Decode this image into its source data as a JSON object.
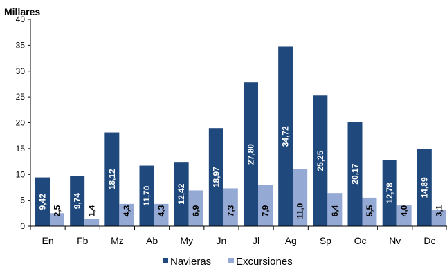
{
  "chart_data": {
    "type": "bar",
    "ylabel": "Millares",
    "ylim": [
      0,
      40
    ],
    "yticks": [
      0,
      5,
      10,
      15,
      20,
      25,
      30,
      35,
      40
    ],
    "grid": false,
    "legend_position": "bottom",
    "categories": [
      "En",
      "Fb",
      "Mz",
      "Ab",
      "My",
      "Jn",
      "Jl",
      "Ag",
      "Sp",
      "Oc",
      "Nv",
      "Dc"
    ],
    "series": [
      {
        "name": "Navieras",
        "color": "#1f497d",
        "values": [
          9.42,
          9.74,
          18.12,
          11.7,
          12.42,
          18.97,
          27.8,
          34.72,
          25.25,
          20.17,
          12.78,
          14.89
        ],
        "labels": [
          "9,42",
          "9,74",
          "18,12",
          "11,70",
          "12,42",
          "18,97",
          "27,80",
          "34,72",
          "25,25",
          "20,17",
          "12,78",
          "14,89"
        ],
        "label_color": "#ffffff"
      },
      {
        "name": "Excursiones",
        "color": "#95a9d5",
        "values": [
          2.5,
          1.4,
          4.3,
          4.3,
          6.9,
          7.3,
          7.9,
          11.0,
          6.4,
          5.5,
          4.0,
          3.1
        ],
        "labels": [
          "2,5",
          "1,4",
          "4,3",
          "4,3",
          "6,9",
          "7,3",
          "7,9",
          "11,0",
          "6,4",
          "5,5",
          "4,0",
          "3,1"
        ],
        "label_color": "#000000"
      }
    ]
  }
}
